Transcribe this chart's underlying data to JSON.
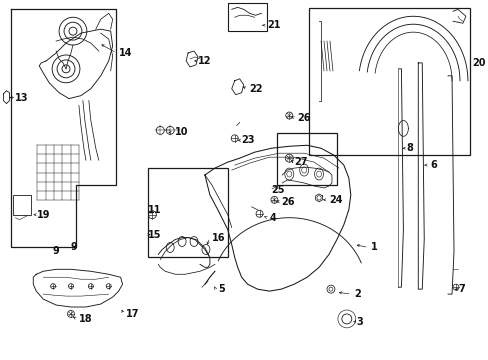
{
  "bg": "#ffffff",
  "lc": "#1a1a1a",
  "fig_w": 4.89,
  "fig_h": 3.6,
  "dpi": 100,
  "label_fs": 7.0,
  "small_fs": 6.5
}
